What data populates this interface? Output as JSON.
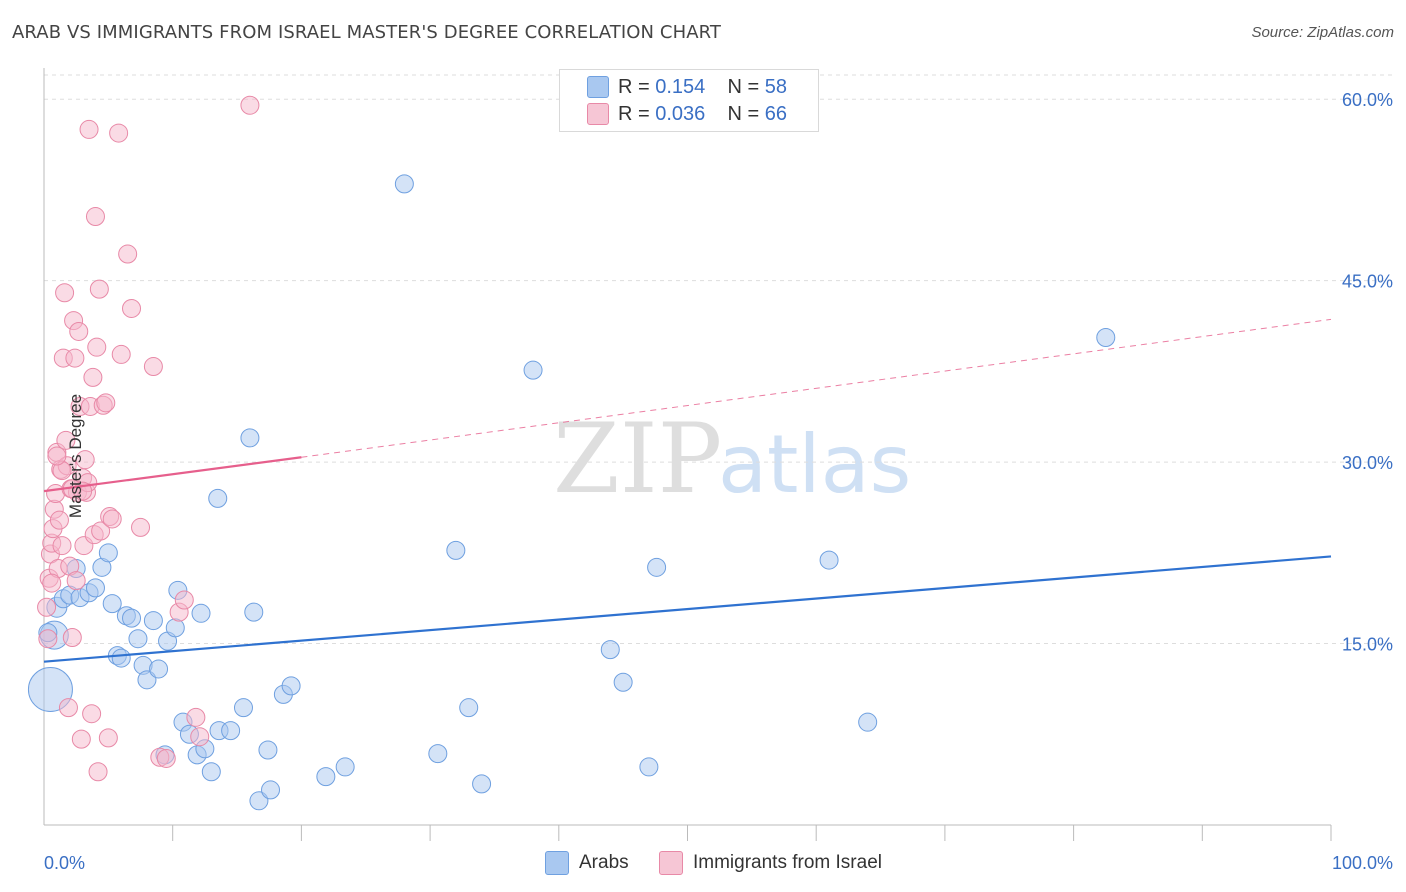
{
  "title": "ARAB VS IMMIGRANTS FROM ISRAEL MASTER'S DEGREE CORRELATION CHART",
  "source": "Source: ZipAtlas.com",
  "watermark": {
    "zip": "ZIP",
    "atlas": "atlas"
  },
  "legend": {
    "rows": [
      {
        "r_label": "R = ",
        "r_value": "0.154",
        "n_label": "N = ",
        "n_value": "58",
        "color": "#a9c8f0"
      },
      {
        "r_label": "R = ",
        "r_value": "0.036",
        "n_label": "N = ",
        "n_value": "66",
        "color": "#f6b8cb"
      }
    ]
  },
  "bottom_legend": [
    {
      "label": "Arabs",
      "color": "#a9c8f0"
    },
    {
      "label": "Immigrants from Israel",
      "color": "#f6b8cb"
    }
  ],
  "chart_data": {
    "type": "scatter",
    "title": "ARAB VS IMMIGRANTS FROM ISRAEL MASTER'S DEGREE CORRELATION CHART",
    "xlabel": "",
    "ylabel": "Master's Degree",
    "xlim": [
      0,
      100
    ],
    "ylim": [
      0,
      62
    ],
    "x_tick_labels": [
      "0.0%",
      "100.0%"
    ],
    "y_ticks": [
      15,
      30,
      45,
      60
    ],
    "y_tick_labels": [
      "15.0%",
      "30.0%",
      "45.0%",
      "60.0%"
    ],
    "grid": true,
    "series": [
      {
        "name": "Arabs",
        "color": "#6fa0e0",
        "fill": "#a9c8f0",
        "trend": {
          "x": [
            0,
            100
          ],
          "y": [
            13.5,
            22.2
          ],
          "style": "solid",
          "color": "#2f72d0"
        },
        "points": [
          {
            "x": 0.5,
            "y": 11.2,
            "s": 22
          },
          {
            "x": 0.8,
            "y": 15.7,
            "s": 14
          },
          {
            "x": 1.0,
            "y": 18.0,
            "s": 10
          },
          {
            "x": 1.5,
            "y": 18.7,
            "s": 9
          },
          {
            "x": 2.0,
            "y": 19.0,
            "s": 9
          },
          {
            "x": 2.5,
            "y": 21.2,
            "s": 9
          },
          {
            "x": 2.8,
            "y": 18.8,
            "s": 9
          },
          {
            "x": 3.5,
            "y": 19.2,
            "s": 9
          },
          {
            "x": 4.0,
            "y": 19.6,
            "s": 9
          },
          {
            "x": 4.5,
            "y": 21.3,
            "s": 9
          },
          {
            "x": 5.0,
            "y": 22.5,
            "s": 9
          },
          {
            "x": 5.3,
            "y": 18.3,
            "s": 9
          },
          {
            "x": 5.7,
            "y": 14.0,
            "s": 9
          },
          {
            "x": 6.0,
            "y": 13.8,
            "s": 9
          },
          {
            "x": 6.4,
            "y": 17.3,
            "s": 9
          },
          {
            "x": 6.8,
            "y": 17.1,
            "s": 9
          },
          {
            "x": 7.3,
            "y": 15.4,
            "s": 9
          },
          {
            "x": 7.7,
            "y": 13.2,
            "s": 9
          },
          {
            "x": 8.0,
            "y": 12.0,
            "s": 9
          },
          {
            "x": 8.5,
            "y": 16.9,
            "s": 9
          },
          {
            "x": 8.9,
            "y": 12.9,
            "s": 9
          },
          {
            "x": 9.4,
            "y": 5.8,
            "s": 9
          },
          {
            "x": 9.6,
            "y": 15.2,
            "s": 9
          },
          {
            "x": 10.2,
            "y": 16.3,
            "s": 9
          },
          {
            "x": 10.4,
            "y": 19.4,
            "s": 9
          },
          {
            "x": 10.8,
            "y": 8.5,
            "s": 9
          },
          {
            "x": 11.3,
            "y": 7.5,
            "s": 9
          },
          {
            "x": 11.9,
            "y": 5.8,
            "s": 9
          },
          {
            "x": 12.2,
            "y": 17.5,
            "s": 9
          },
          {
            "x": 12.5,
            "y": 6.3,
            "s": 9
          },
          {
            "x": 13.0,
            "y": 4.4,
            "s": 9
          },
          {
            "x": 13.5,
            "y": 27.0,
            "s": 9
          },
          {
            "x": 13.6,
            "y": 7.8,
            "s": 9
          },
          {
            "x": 14.5,
            "y": 7.8,
            "s": 9
          },
          {
            "x": 15.5,
            "y": 9.7,
            "s": 9
          },
          {
            "x": 16.0,
            "y": 32.0,
            "s": 9
          },
          {
            "x": 16.3,
            "y": 17.6,
            "s": 9
          },
          {
            "x": 16.7,
            "y": 2.0,
            "s": 9
          },
          {
            "x": 17.4,
            "y": 6.2,
            "s": 9
          },
          {
            "x": 17.6,
            "y": 2.9,
            "s": 9
          },
          {
            "x": 18.6,
            "y": 10.8,
            "s": 9
          },
          {
            "x": 19.2,
            "y": 11.5,
            "s": 9
          },
          {
            "x": 21.9,
            "y": 4.0,
            "s": 9
          },
          {
            "x": 23.4,
            "y": 4.8,
            "s": 9
          },
          {
            "x": 28.0,
            "y": 53.0,
            "s": 9
          },
          {
            "x": 30.6,
            "y": 5.9,
            "s": 9
          },
          {
            "x": 32.0,
            "y": 22.7,
            "s": 9
          },
          {
            "x": 33.0,
            "y": 9.7,
            "s": 9
          },
          {
            "x": 34.0,
            "y": 3.4,
            "s": 9
          },
          {
            "x": 38.0,
            "y": 37.6,
            "s": 9
          },
          {
            "x": 44.0,
            "y": 14.5,
            "s": 9
          },
          {
            "x": 45.0,
            "y": 11.8,
            "s": 9
          },
          {
            "x": 47.0,
            "y": 4.8,
            "s": 9
          },
          {
            "x": 47.6,
            "y": 21.3,
            "s": 9
          },
          {
            "x": 61.0,
            "y": 21.9,
            "s": 9
          },
          {
            "x": 64.0,
            "y": 8.5,
            "s": 9
          },
          {
            "x": 82.5,
            "y": 40.3,
            "s": 9
          },
          {
            "x": 0.3,
            "y": 15.9,
            "s": 9
          }
        ]
      },
      {
        "name": "Immigrants from Israel",
        "color": "#e889a7",
        "fill": "#f6b8cb",
        "trend": {
          "x": [
            0,
            20,
            100
          ],
          "y": [
            27.6,
            30.4,
            41.8
          ],
          "solid_until": 20,
          "style": "solid-then-dashed",
          "color": "#e65f8c"
        },
        "points": [
          {
            "x": 0.3,
            "y": 15.4,
            "s": 9
          },
          {
            "x": 0.4,
            "y": 20.4,
            "s": 9
          },
          {
            "x": 0.5,
            "y": 22.4,
            "s": 9
          },
          {
            "x": 0.6,
            "y": 23.3,
            "s": 9
          },
          {
            "x": 0.7,
            "y": 24.5,
            "s": 9
          },
          {
            "x": 0.8,
            "y": 26.1,
            "s": 9
          },
          {
            "x": 0.9,
            "y": 27.4,
            "s": 9
          },
          {
            "x": 1.0,
            "y": 30.8,
            "s": 9
          },
          {
            "x": 1.1,
            "y": 21.2,
            "s": 9
          },
          {
            "x": 1.2,
            "y": 25.2,
            "s": 9
          },
          {
            "x": 1.3,
            "y": 29.4,
            "s": 9
          },
          {
            "x": 1.4,
            "y": 23.1,
            "s": 9
          },
          {
            "x": 1.5,
            "y": 38.6,
            "s": 9
          },
          {
            "x": 1.6,
            "y": 44.0,
            "s": 9
          },
          {
            "x": 1.7,
            "y": 31.8,
            "s": 9
          },
          {
            "x": 1.8,
            "y": 29.7,
            "s": 9
          },
          {
            "x": 1.9,
            "y": 9.7,
            "s": 9
          },
          {
            "x": 2.0,
            "y": 21.4,
            "s": 9
          },
          {
            "x": 2.1,
            "y": 27.8,
            "s": 9
          },
          {
            "x": 2.2,
            "y": 15.5,
            "s": 9
          },
          {
            "x": 2.3,
            "y": 41.7,
            "s": 9
          },
          {
            "x": 2.4,
            "y": 38.6,
            "s": 9
          },
          {
            "x": 2.5,
            "y": 20.2,
            "s": 9
          },
          {
            "x": 2.6,
            "y": 27.5,
            "s": 9
          },
          {
            "x": 2.7,
            "y": 40.8,
            "s": 9
          },
          {
            "x": 2.8,
            "y": 34.6,
            "s": 9
          },
          {
            "x": 2.9,
            "y": 7.1,
            "s": 9
          },
          {
            "x": 3.0,
            "y": 28.7,
            "s": 9
          },
          {
            "x": 3.1,
            "y": 23.1,
            "s": 9
          },
          {
            "x": 3.2,
            "y": 30.2,
            "s": 9
          },
          {
            "x": 3.3,
            "y": 27.5,
            "s": 9
          },
          {
            "x": 3.4,
            "y": 28.3,
            "s": 9
          },
          {
            "x": 3.5,
            "y": 57.5,
            "s": 9
          },
          {
            "x": 3.6,
            "y": 34.6,
            "s": 9
          },
          {
            "x": 3.7,
            "y": 9.2,
            "s": 9
          },
          {
            "x": 3.8,
            "y": 37.0,
            "s": 9
          },
          {
            "x": 3.9,
            "y": 24.0,
            "s": 9
          },
          {
            "x": 4.0,
            "y": 50.3,
            "s": 9
          },
          {
            "x": 4.1,
            "y": 39.5,
            "s": 9
          },
          {
            "x": 4.2,
            "y": 4.4,
            "s": 9
          },
          {
            "x": 4.3,
            "y": 44.3,
            "s": 9
          },
          {
            "x": 4.4,
            "y": 24.3,
            "s": 9
          },
          {
            "x": 4.6,
            "y": 34.7,
            "s": 9
          },
          {
            "x": 4.8,
            "y": 34.9,
            "s": 9
          },
          {
            "x": 5.0,
            "y": 7.2,
            "s": 9
          },
          {
            "x": 5.1,
            "y": 25.5,
            "s": 9
          },
          {
            "x": 5.3,
            "y": 25.3,
            "s": 9
          },
          {
            "x": 5.8,
            "y": 57.2,
            "s": 9
          },
          {
            "x": 6.0,
            "y": 38.9,
            "s": 9
          },
          {
            "x": 6.5,
            "y": 47.2,
            "s": 9
          },
          {
            "x": 6.8,
            "y": 42.7,
            "s": 9
          },
          {
            "x": 7.5,
            "y": 24.6,
            "s": 9
          },
          {
            "x": 8.5,
            "y": 37.9,
            "s": 9
          },
          {
            "x": 9.0,
            "y": 5.6,
            "s": 9
          },
          {
            "x": 9.5,
            "y": 5.5,
            "s": 9
          },
          {
            "x": 10.5,
            "y": 17.6,
            "s": 9
          },
          {
            "x": 10.9,
            "y": 18.6,
            "s": 9
          },
          {
            "x": 11.8,
            "y": 8.9,
            "s": 9
          },
          {
            "x": 12.1,
            "y": 7.3,
            "s": 9
          },
          {
            "x": 16.0,
            "y": 59.5,
            "s": 9
          },
          {
            "x": 0.2,
            "y": 18.0,
            "s": 9
          },
          {
            "x": 0.6,
            "y": 20.0,
            "s": 9
          },
          {
            "x": 1.4,
            "y": 29.3,
            "s": 9
          },
          {
            "x": 2.2,
            "y": 27.8,
            "s": 9
          },
          {
            "x": 3.0,
            "y": 27.6,
            "s": 9
          },
          {
            "x": 1.0,
            "y": 30.5,
            "s": 9
          }
        ]
      }
    ]
  }
}
